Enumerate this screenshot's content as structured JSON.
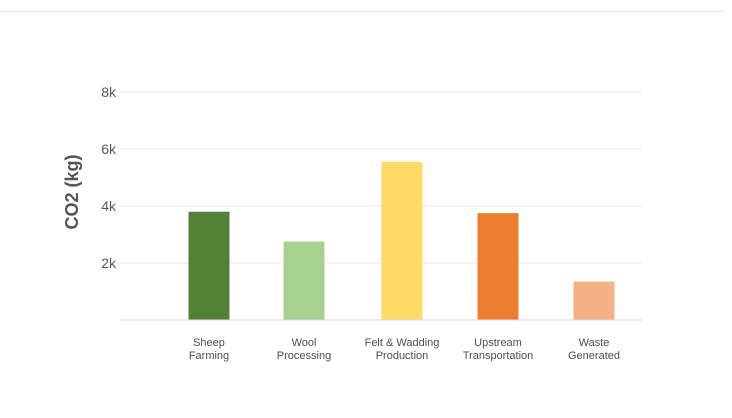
{
  "chart_data": {
    "type": "bar",
    "categories": [
      [
        "Sheep",
        "Farming"
      ],
      [
        "Wool",
        "Processing"
      ],
      [
        "Felt & Wadding",
        "Production"
      ],
      [
        "Upstream",
        "Transportation"
      ],
      [
        "Waste",
        "Generated"
      ]
    ],
    "values": [
      3800,
      2750,
      5550,
      3750,
      1350
    ],
    "colors": [
      "#538135",
      "#a9d18e",
      "#ffd966",
      "#ed7d31",
      "#f4b183"
    ],
    "ylabel": "CO2 (kg)",
    "ylim": [
      0,
      8000
    ],
    "yticks": [
      2000,
      4000,
      6000,
      8000
    ],
    "ytick_labels": [
      "2k",
      "4k",
      "6k",
      "8k"
    ],
    "grid": true
  }
}
